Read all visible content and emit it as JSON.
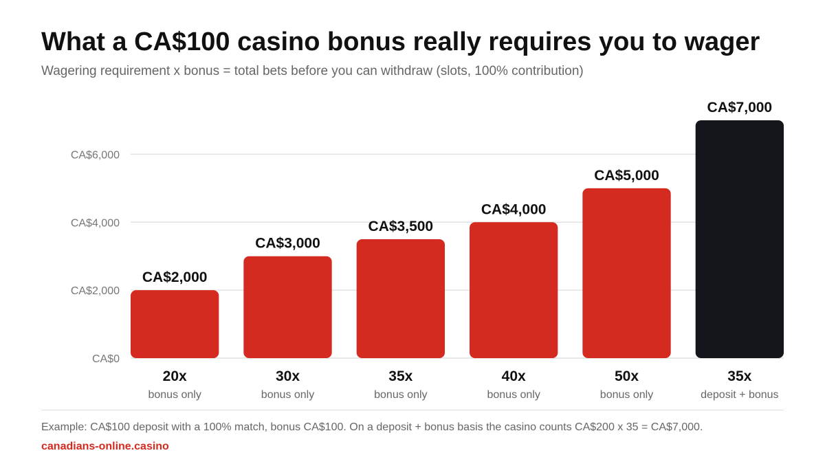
{
  "title": "What a CA$100 casino bonus really requires you to wager",
  "subtitle": "Wagering requirement x bonus = total bets before you can withdraw (slots, 100% contribution)",
  "footnote": "Example: CA$100 deposit with a 100% match, bonus CA$100. On a deposit + bonus basis the casino counts CA$200 x 35 = CA$7,000.",
  "source": "canadians-online.casino",
  "colors": {
    "bonus_only": "#d42a20",
    "deposit_bonus": "#13161a",
    "grid": "#e2e2e2"
  },
  "chart_data": {
    "type": "bar",
    "title": "",
    "xlabel": "",
    "ylabel": "",
    "ylim": [
      0,
      7000
    ],
    "grid": true,
    "legend": "none",
    "y_ticks": [
      {
        "value": 0,
        "label": "CA$0"
      },
      {
        "value": 2000,
        "label": "CA$2,000"
      },
      {
        "value": 4000,
        "label": "CA$4,000"
      },
      {
        "value": 6000,
        "label": "CA$6,000"
      }
    ],
    "categories": [
      "20x",
      "30x",
      "35x",
      "40x",
      "50x",
      "35x"
    ],
    "category_sublabels": [
      "bonus only",
      "bonus only",
      "bonus only",
      "bonus only",
      "bonus only",
      "deposit + bonus"
    ],
    "values": [
      2000,
      3000,
      3500,
      4000,
      5000,
      7000
    ],
    "value_labels": [
      "CA$2,000",
      "CA$3,000",
      "CA$3,500",
      "CA$4,000",
      "CA$5,000",
      "CA$7,000"
    ],
    "bar_color_keys": [
      "bonus_only",
      "bonus_only",
      "bonus_only",
      "bonus_only",
      "bonus_only",
      "deposit_bonus"
    ]
  }
}
